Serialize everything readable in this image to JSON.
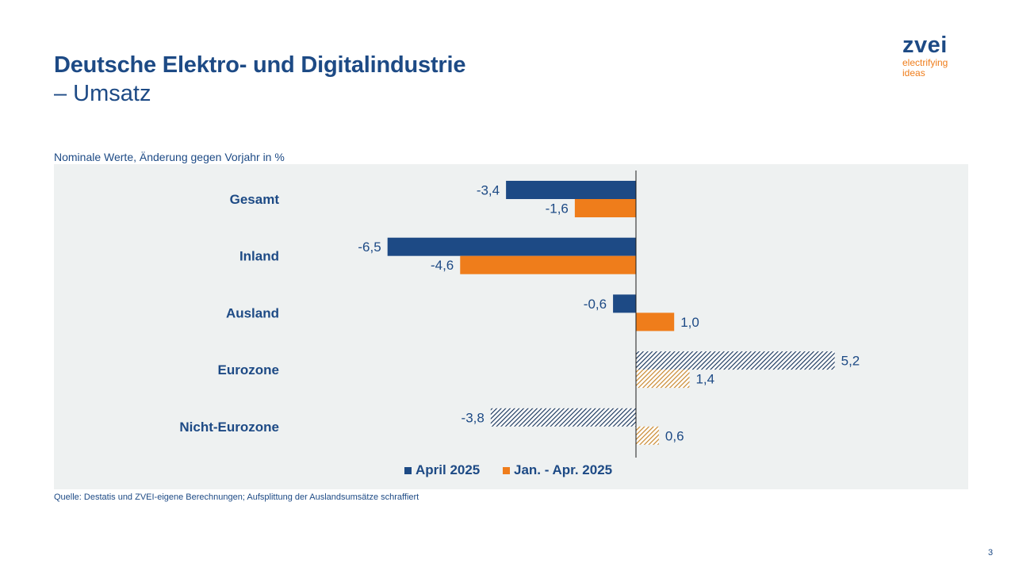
{
  "header": {
    "title": "Deutsche Elektro- und Digitalindustrie",
    "subtitle": "– Umsatz"
  },
  "logo": {
    "word": "zvei",
    "tagline_1": "electrifying",
    "tagline_2": "ideas"
  },
  "colors": {
    "navy": "#1d4a85",
    "orange": "#ef7d1b",
    "hatch_navy": "#1d3a5f",
    "hatch_orange": "#c8882e",
    "panel": "#eef1f1"
  },
  "chart_data": {
    "type": "bar",
    "orientation": "horizontal",
    "note": "Nominale Werte, Änderung gegen Vorjahr in %",
    "categories": [
      "Gesamt",
      "Inland",
      "Ausland",
      "Eurozone",
      "Nicht-Eurozone"
    ],
    "series": [
      {
        "name": "April 2025",
        "color": "#1d4a85",
        "values": [
          -3.4,
          -6.5,
          -0.6,
          5.2,
          -3.8
        ],
        "labels": [
          "-3,4",
          "-6,5",
          "-0,6",
          "5,2",
          "-3,8"
        ],
        "hatched": [
          false,
          false,
          false,
          true,
          true
        ]
      },
      {
        "name": "Jan. - Apr. 2025",
        "color": "#ef7d1b",
        "values": [
          -1.6,
          -4.6,
          1.0,
          1.4,
          0.6
        ],
        "labels": [
          "-1,6",
          "-4,6",
          "1,0",
          "1,4",
          "0,6"
        ],
        "hatched": [
          false,
          false,
          false,
          true,
          true
        ]
      }
    ],
    "xlim": [
      -7.0,
      5.2
    ],
    "grid": false,
    "legend_position": "bottom"
  },
  "footer": {
    "source": "Quelle: Destatis und ZVEI-eigene Berechnungen; Aufsplittung der Auslandsumsätze schraffiert",
    "page_number": "3"
  }
}
